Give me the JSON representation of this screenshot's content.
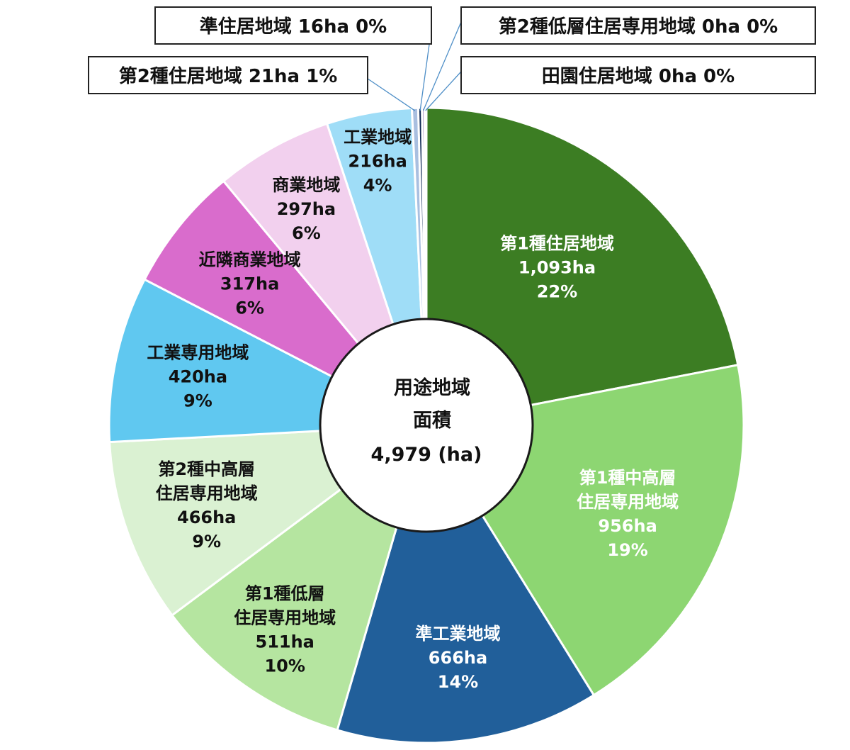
{
  "chart_data": {
    "type": "pie",
    "center": {
      "line1": "用途地域",
      "line2": "面積",
      "line3": "4,979 (ha)"
    },
    "slices": [
      {
        "label": "第1種住居地域",
        "value": 1093,
        "value_text": "1,093ha",
        "percent_text": "22%",
        "color": "#3c7d23",
        "text_color": "#ffffff"
      },
      {
        "label": "第1種中高層住居専用地域",
        "value": 956,
        "value_text": "956ha",
        "percent_text": "19%",
        "color": "#8dd672",
        "text_color": "#ffffff"
      },
      {
        "label": "準工業地域",
        "value": 666,
        "value_text": "666ha",
        "percent_text": "14%",
        "color": "#215f9a",
        "text_color": "#ffffff"
      },
      {
        "label": "第1種低層住居専用地域",
        "value": 511,
        "value_text": "511ha",
        "percent_text": "10%",
        "color": "#b5e5a0",
        "text_color": "#111111"
      },
      {
        "label": "第2種中高層住居専用地域",
        "value": 466,
        "value_text": "466ha",
        "percent_text": "9%",
        "color": "#daf1d2",
        "text_color": "#111111"
      },
      {
        "label": "工業専用地域",
        "value": 420,
        "value_text": "420ha",
        "percent_text": "9%",
        "color": "#60c8f0",
        "text_color": "#111111"
      },
      {
        "label": "近隣商業地域",
        "value": 317,
        "value_text": "317ha",
        "percent_text": "6%",
        "color": "#d96ccc",
        "text_color": "#111111"
      },
      {
        "label": "商業地域",
        "value": 297,
        "value_text": "297ha",
        "percent_text": "6%",
        "color": "#f2d0ee",
        "text_color": "#111111"
      },
      {
        "label": "工業地域",
        "value": 216,
        "value_text": "216ha",
        "percent_text": "4%",
        "color": "#9fddf7",
        "text_color": "#111111"
      },
      {
        "label": "第2種住居地域",
        "value": 21,
        "value_text": "21ha",
        "percent_text": "1%",
        "color": "#a9bfe0",
        "text_color": "#111111"
      },
      {
        "label": "準住居地域",
        "value": 16,
        "value_text": "16ha",
        "percent_text": "0%",
        "color": "#0f2a56",
        "text_color": "#111111"
      },
      {
        "label": "第2種低層住居専用地域",
        "value": 0,
        "value_text": "0ha",
        "percent_text": "0%",
        "color": "#5a2b86",
        "text_color": "#111111"
      },
      {
        "label": "田園住居地域",
        "value": 0,
        "value_text": "0ha",
        "percent_text": "0%",
        "color": "#2a6a2a",
        "text_color": "#111111"
      }
    ]
  }
}
